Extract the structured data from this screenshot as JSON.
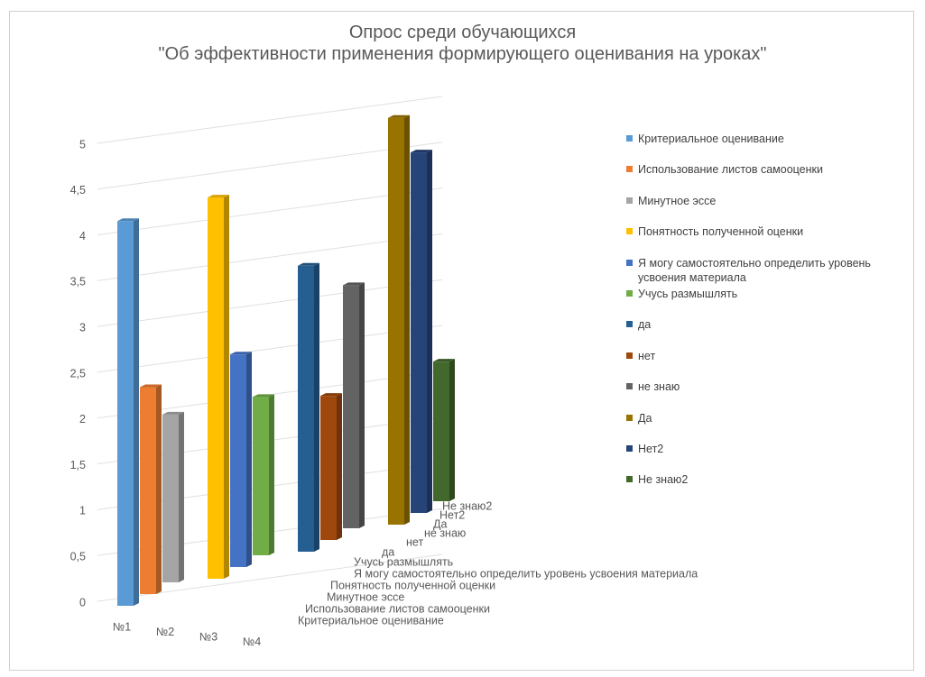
{
  "chart_data": {
    "type": "bar3d",
    "title": "Опрос среди обучающихся",
    "subtitle": "\"Об эффективности применения формирующего оценивания на уроках\"",
    "categories": [
      "№1",
      "№2",
      "№3",
      "№4"
    ],
    "series": [
      {
        "name": "Критериальное оценивание",
        "color": "#5b9bd5",
        "values": [
          4.2,
          null,
          null,
          null
        ]
      },
      {
        "name": "Использование листов самооценки",
        "color": "#ed7d31",
        "values": [
          2.3,
          null,
          null,
          null
        ]
      },
      {
        "name": "Минутное эссе",
        "color": "#a5a5a5",
        "values": [
          1.9,
          null,
          null,
          null
        ]
      },
      {
        "name": "Понятность полученной оценки",
        "color": "#ffc000",
        "values": [
          null,
          4.4,
          null,
          null
        ]
      },
      {
        "name": "Я могу самостоятельно определить уровень усвоения материала",
        "color": "#4472c4",
        "values": [
          null,
          2.5,
          null,
          null
        ]
      },
      {
        "name": "Учусь размышлять",
        "color": "#70ad47",
        "values": [
          null,
          1.9,
          null,
          null
        ]
      },
      {
        "name": "да",
        "color": "#255e91",
        "values": [
          null,
          null,
          3.5,
          null
        ]
      },
      {
        "name": "нет",
        "color": "#9e480e",
        "values": [
          null,
          null,
          1.8,
          null
        ]
      },
      {
        "name": "не знаю",
        "color": "#636363",
        "values": [
          null,
          null,
          3.1,
          null
        ]
      },
      {
        "name": "Да",
        "color": "#997300",
        "values": [
          null,
          null,
          null,
          5.3
        ]
      },
      {
        "name": "Нет2",
        "color": "#264478",
        "values": [
          null,
          null,
          null,
          4.8
        ]
      },
      {
        "name": "Не знаю2",
        "color": "#43682b",
        "values": [
          null,
          null,
          null,
          1.9
        ]
      }
    ],
    "ylim": [
      0,
      5
    ],
    "yticks": [
      0,
      {
        "value": 0.5,
        "label": "0,5"
      },
      1,
      {
        "value": 1.5,
        "label": "1,5"
      },
      2,
      {
        "value": 2.5,
        "label": "2,5"
      },
      3,
      {
        "value": 3.5,
        "label": "3,5"
      },
      4,
      {
        "value": 4.5,
        "label": "4,5"
      },
      5
    ],
    "grid": true
  }
}
